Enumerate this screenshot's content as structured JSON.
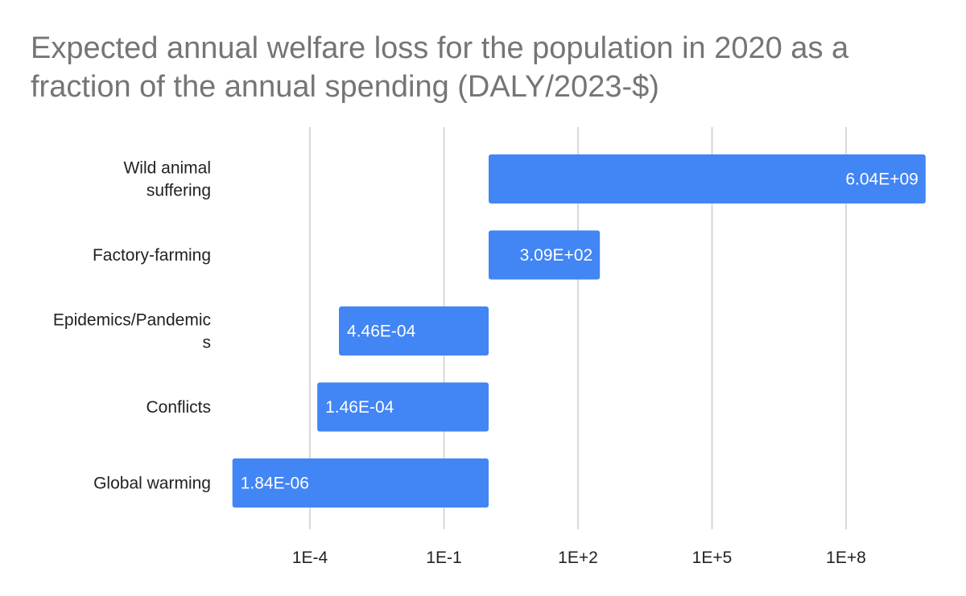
{
  "chart_data": {
    "type": "bar",
    "orientation": "horizontal",
    "title": "Expected annual welfare loss for the population in 2020 as a fraction of the annual spending (DALY/2023-$)",
    "xscale": "log10",
    "xlim": [
      1e-06,
      10000000000.0
    ],
    "bar_baseline": 1,
    "grid": true,
    "categories": [
      {
        "label_lines": [
          "Wild animal",
          "suffering"
        ]
      },
      {
        "label_lines": [
          "Factory-farming"
        ]
      },
      {
        "label_lines": [
          "Epidemics/Pandemic",
          "s"
        ]
      },
      {
        "label_lines": [
          "Conflicts"
        ]
      },
      {
        "label_lines": [
          "Global warming"
        ]
      }
    ],
    "values": [
      6040000000.0,
      309,
      0.000446,
      0.000146,
      1.84e-06
    ],
    "value_labels": [
      "6.04E+09",
      "3.09E+02",
      "4.46E-04",
      "1.46E-04",
      "1.84E-06"
    ],
    "x_ticks": [
      {
        "value": 0.0001,
        "label": "1E-4"
      },
      {
        "value": 0.1,
        "label": "1E-1"
      },
      {
        "value": 100.0,
        "label": "1E+2"
      },
      {
        "value": 100000.0,
        "label": "1E+5"
      },
      {
        "value": 100000000.0,
        "label": "1E+8"
      }
    ],
    "colors": {
      "bar": "#4285f4",
      "grid": "#cccccc",
      "label": "#222222",
      "title": "#757575"
    }
  }
}
